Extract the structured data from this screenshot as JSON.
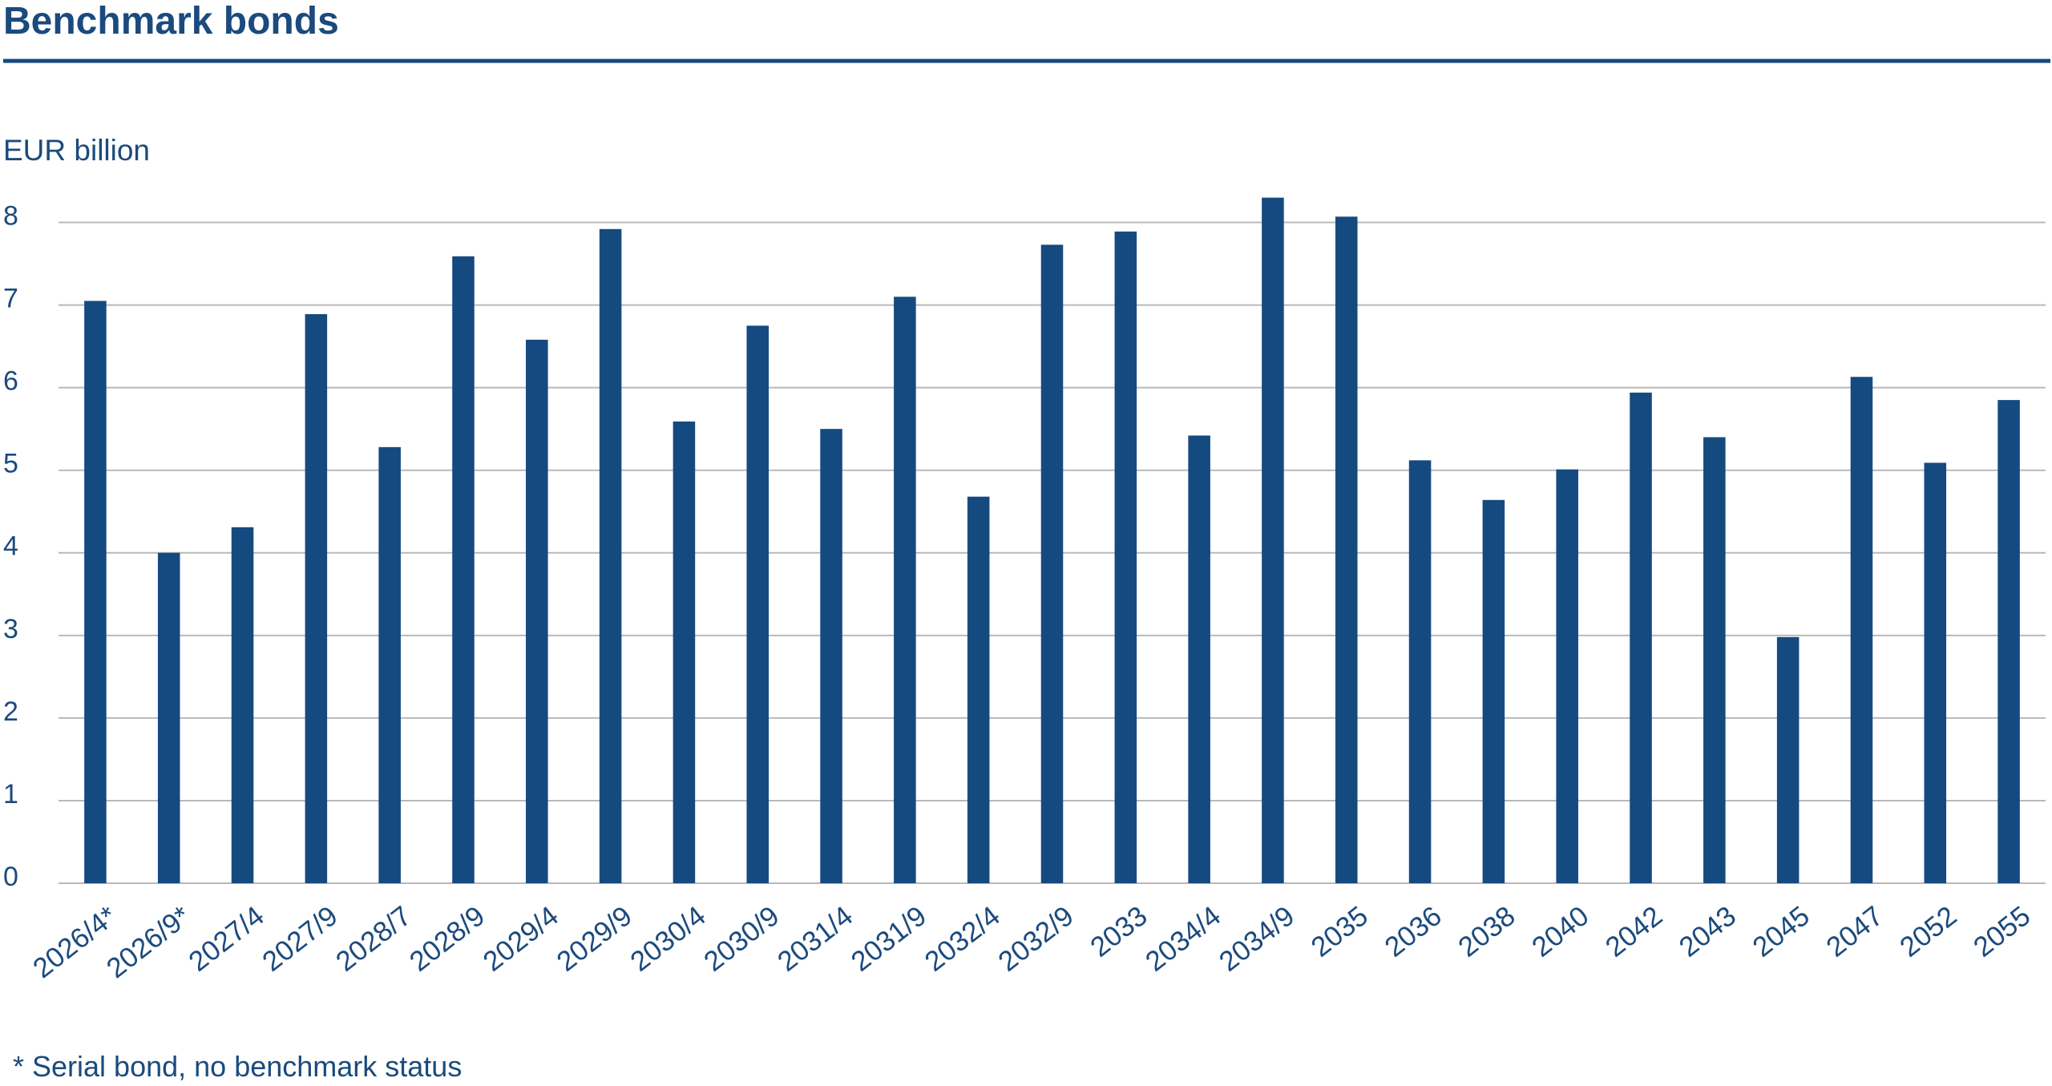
{
  "chart_data": {
    "type": "bar",
    "title": "Benchmark bonds",
    "y_label": "EUR billion",
    "note": "*  Serial bond, no benchmark status",
    "categories": [
      "2026/4*",
      "2026/9*",
      "2027/4",
      "2027/9",
      "2028/7",
      "2028/9",
      "2029/4",
      "2029/9",
      "2030/4",
      "2030/9",
      "2031/4",
      "2031/9",
      "2032/4",
      "2032/9",
      "2033",
      "2034/4",
      "2034/9",
      "2035",
      "2036",
      "2038",
      "2040",
      "2042",
      "2043",
      "2045",
      "2047",
      "2052",
      "2055"
    ],
    "values": [
      7.05,
      4.0,
      4.31,
      6.89,
      5.28,
      7.59,
      6.58,
      7.92,
      5.59,
      6.75,
      5.5,
      7.1,
      4.68,
      7.73,
      7.89,
      5.42,
      8.3,
      8.07,
      5.12,
      4.64,
      5.01,
      5.94,
      5.4,
      2.98,
      6.13,
      5.09,
      5.85
    ],
    "color": "#154a80",
    "ylim": [
      0,
      8.5
    ],
    "yticks": [
      0,
      1,
      2,
      3,
      4,
      5,
      6,
      7,
      8
    ],
    "grid": true
  }
}
